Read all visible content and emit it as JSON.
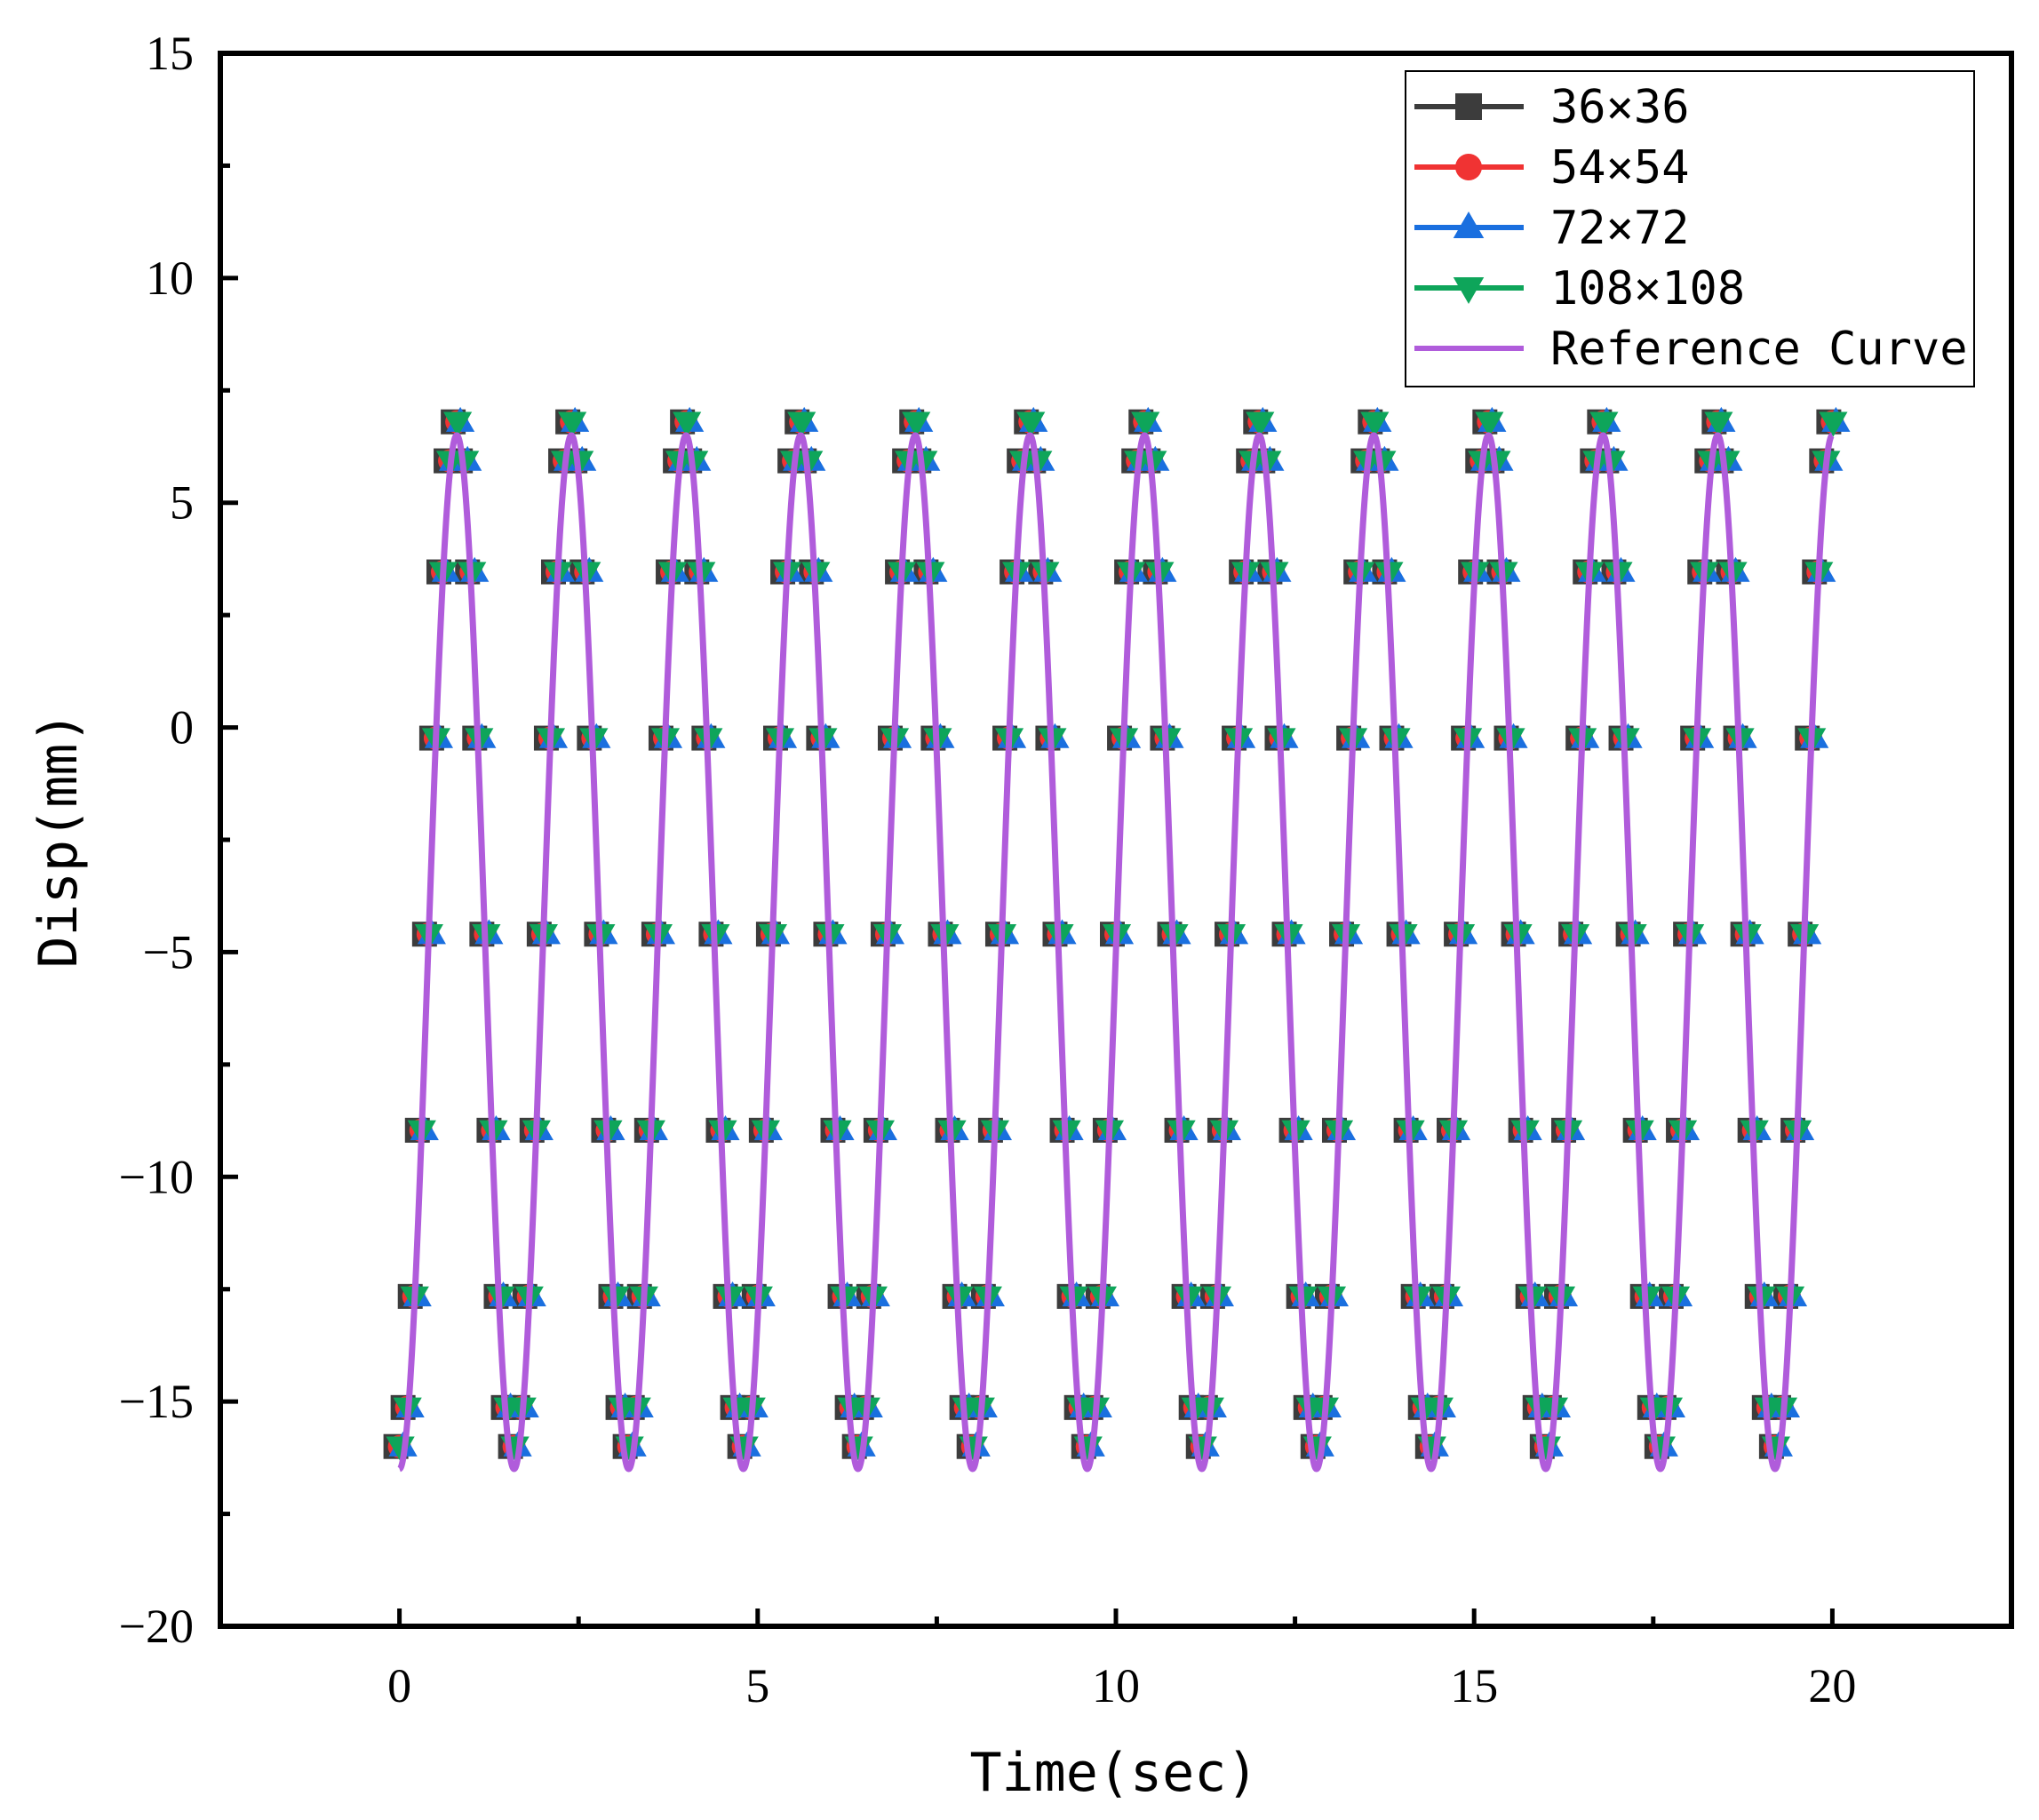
{
  "chart_data": {
    "type": "line",
    "title": "",
    "xlabel": "Time(sec)",
    "ylabel": "Disp(mm)",
    "xlim": [
      -2.5,
      22.5
    ],
    "ylim": [
      -20,
      15
    ],
    "xticks": [
      0,
      5,
      10,
      15,
      20
    ],
    "yticks": [
      15,
      10,
      5,
      0,
      -5,
      -10,
      -15,
      -20
    ],
    "xtick_labels": [
      "0",
      "5",
      "10",
      "15",
      "20"
    ],
    "ytick_labels": [
      "15",
      "10",
      "5",
      "0",
      "−5",
      "−10",
      "−15",
      "−20"
    ],
    "grid": false,
    "legend_position": "top-right",
    "signal": {
      "mean": -5.0,
      "amplitude": 11.5,
      "period": 1.6,
      "t_start": 0,
      "t_end": 20,
      "marker_dt": 0.1,
      "marker_peak": 6.8,
      "marker_trough": -16.0
    },
    "series": [
      {
        "name": "36×36",
        "color": "#3c3c3c",
        "marker": "square"
      },
      {
        "name": "54×54",
        "color": "#f03333",
        "marker": "circle"
      },
      {
        "name": "72×72",
        "color": "#1a6fdf",
        "marker": "triangle-up"
      },
      {
        "name": "108×108",
        "color": "#0ea55a",
        "marker": "triangle-down"
      },
      {
        "name": "Reference Curve",
        "color": "#b05cdb",
        "marker": "none"
      }
    ]
  }
}
